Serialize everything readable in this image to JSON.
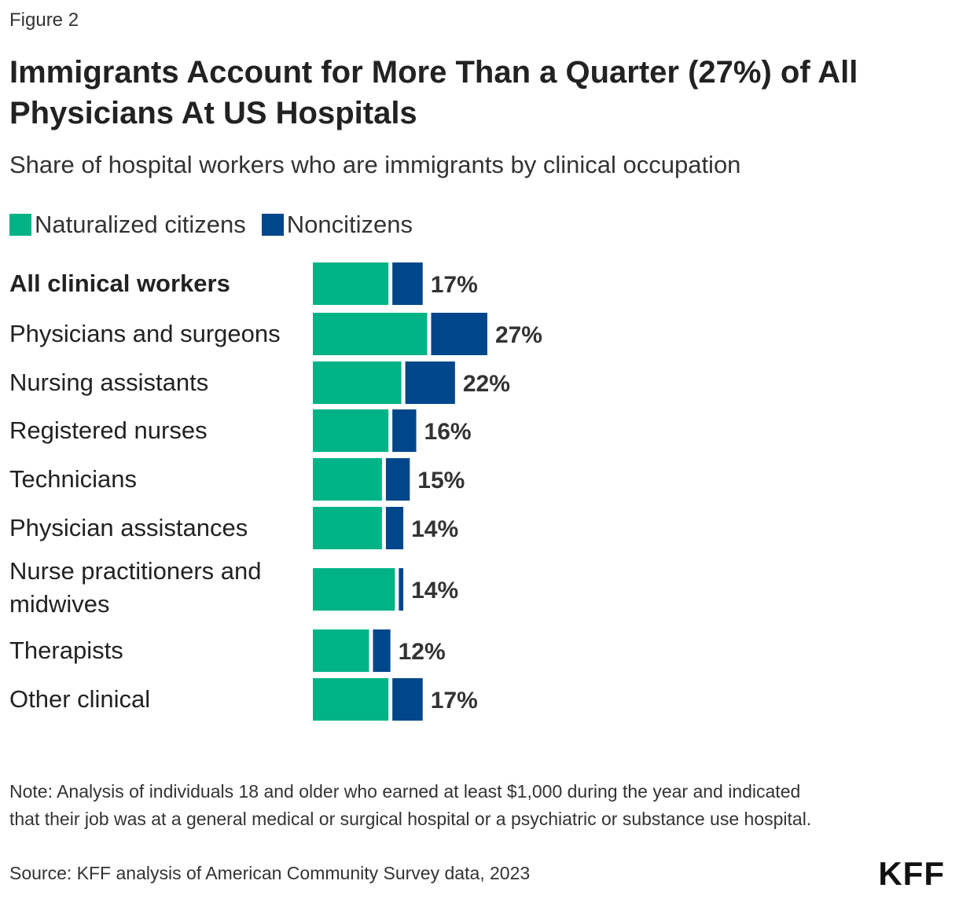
{
  "figure_label": "Figure 2",
  "title": "Immigrants Account for More Than a Quarter (27%) of All Physicians At US Hospitals",
  "subtitle": "Share of hospital workers who are immigrants by clinical occupation",
  "colors": {
    "naturalized": "#00B386",
    "noncitizen": "#00468B"
  },
  "chart_data": {
    "type": "bar",
    "orientation": "horizontal",
    "stacked": true,
    "categories": [
      "All clinical workers",
      "Physicians and surgeons",
      "Nursing assistants",
      "Registered nurses",
      "Technicians",
      "Physician assistances",
      "Nurse practitioners and midwives",
      "Therapists",
      "Other clinical"
    ],
    "series": [
      {
        "name": "Naturalized citizens",
        "values": [
          12,
          18,
          14,
          12,
          11,
          11,
          13,
          9,
          12
        ]
      },
      {
        "name": "Noncitizens",
        "values": [
          5,
          9,
          8,
          4,
          4,
          3,
          1,
          3,
          5
        ]
      }
    ],
    "total_labels": [
      "17%",
      "27%",
      "22%",
      "16%",
      "15%",
      "14%",
      "14%",
      "12%",
      "17%"
    ],
    "legend": "top-left",
    "grid": false
  },
  "note": "Note: Analysis of individuals 18 and older who earned at least $1,000 during the year and indicated that their job was at a general medical or surgical hospital or a psychiatric or substance use hospital.",
  "source": "Source: KFF analysis of American Community Survey data, 2023",
  "logo": "KFF"
}
